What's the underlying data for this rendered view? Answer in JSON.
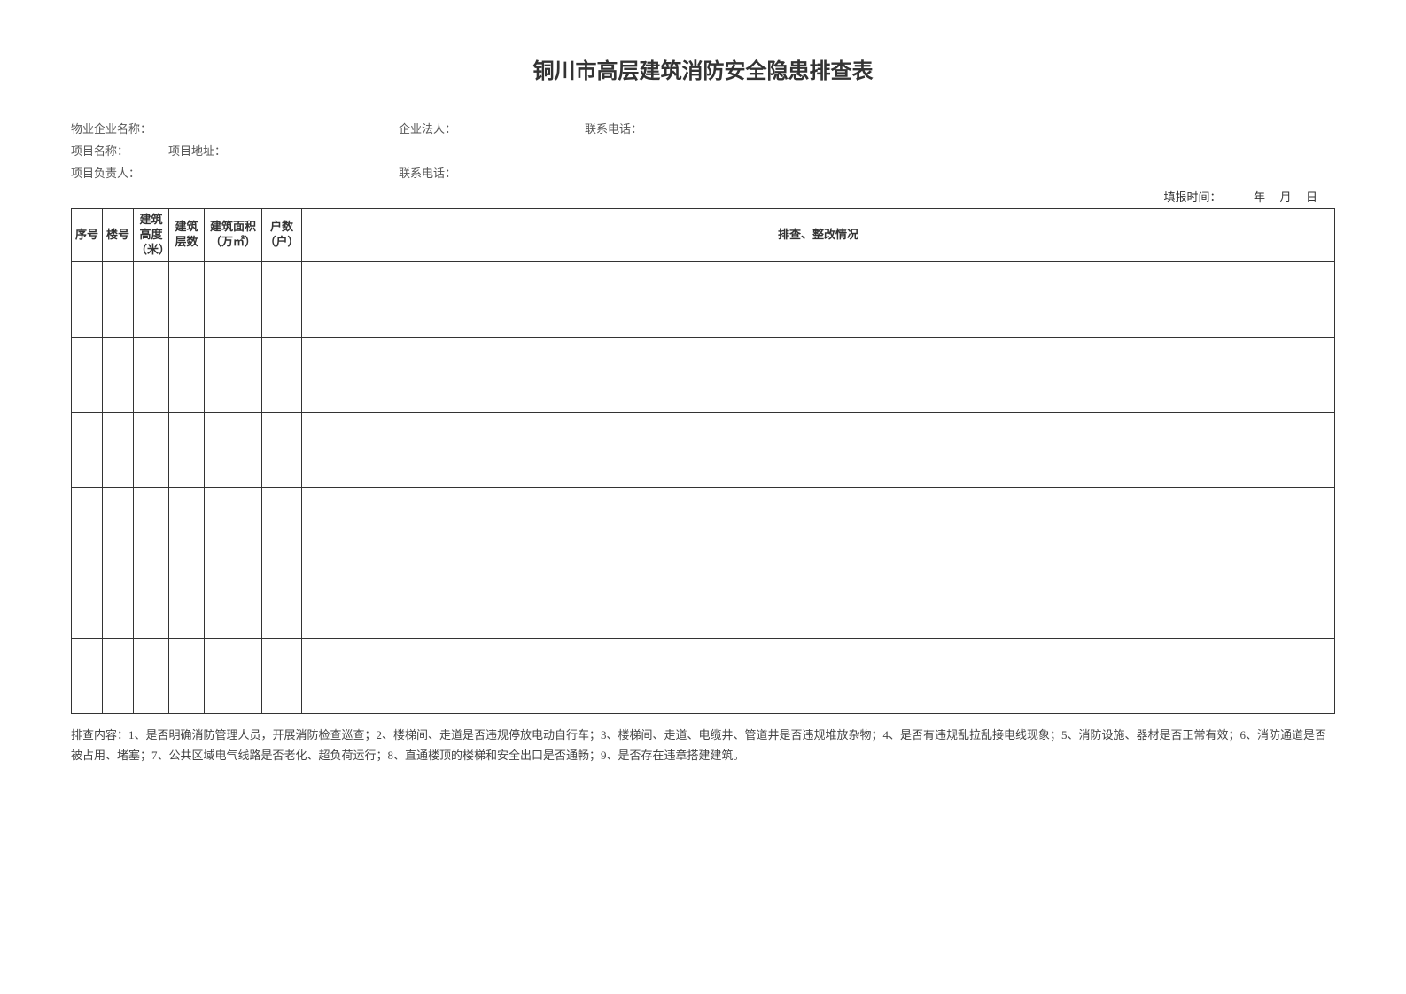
{
  "title": "铜川市高层建筑消防安全隐患排查表",
  "info": {
    "company_name_label": "物业企业名称：",
    "legal_person_label": "企业法人：",
    "contact1_label": "联系电话：",
    "project_name_label": "项目名称：",
    "project_address_label": "项目地址：",
    "project_leader_label": "项目负责人：",
    "contact2_label": "联系电话："
  },
  "date": {
    "label": "填报时间：",
    "year": "年",
    "month": "月",
    "day": "日"
  },
  "table": {
    "headers": {
      "seq": "序号",
      "building": "楼号",
      "height": "建筑高度（米）",
      "floors": "建筑层数",
      "area": "建筑面积（万㎡）",
      "households": "户数（户）",
      "status": "排查、整改情况"
    },
    "rows": [
      {
        "seq": "",
        "building": "",
        "height": "",
        "floors": "",
        "area": "",
        "households": "",
        "status": ""
      },
      {
        "seq": "",
        "building": "",
        "height": "",
        "floors": "",
        "area": "",
        "households": "",
        "status": ""
      },
      {
        "seq": "",
        "building": "",
        "height": "",
        "floors": "",
        "area": "",
        "households": "",
        "status": ""
      },
      {
        "seq": "",
        "building": "",
        "height": "",
        "floors": "",
        "area": "",
        "households": "",
        "status": ""
      },
      {
        "seq": "",
        "building": "",
        "height": "",
        "floors": "",
        "area": "",
        "households": "",
        "status": ""
      },
      {
        "seq": "",
        "building": "",
        "height": "",
        "floors": "",
        "area": "",
        "households": "",
        "status": ""
      }
    ]
  },
  "footnote": "排查内容：1、是否明确消防管理人员，开展消防检查巡查；2、楼梯间、走道是否违规停放电动自行车；3、楼梯间、走道、电缆井、管道井是否违规堆放杂物；4、是否有违规乱拉乱接电线现象；5、消防设施、器材是否正常有效；6、消防通道是否被占用、堵塞；7、公共区域电气线路是否老化、超负荷运行；8、直通楼顶的楼梯和安全出口是否通畅；9、是否存在违章搭建建筑。"
}
